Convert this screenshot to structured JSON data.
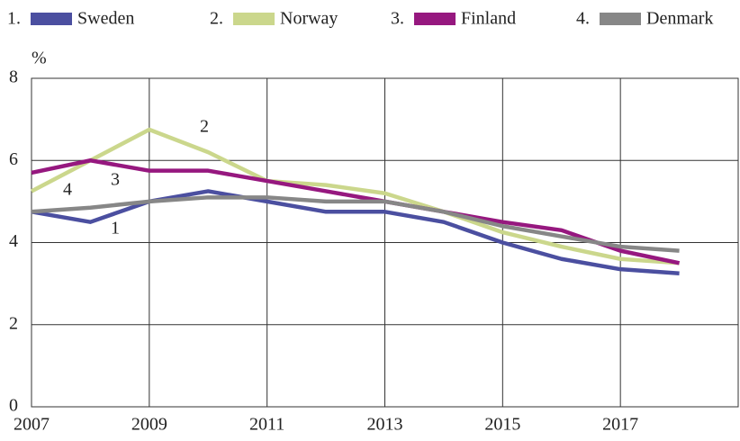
{
  "chart_data": {
    "type": "line",
    "y_label": "%",
    "x": [
      2007,
      2008,
      2009,
      2010,
      2011,
      2012,
      2013,
      2014,
      2015,
      2016,
      2017,
      2018
    ],
    "series": [
      {
        "name": "Sweden",
        "legend_number": "1.",
        "line_label": "1",
        "color": "#4b4fa0",
        "values": [
          4.75,
          4.5,
          5.0,
          5.25,
          5.0,
          4.75,
          4.75,
          4.5,
          4.0,
          3.6,
          3.35,
          3.25
        ]
      },
      {
        "name": "Norway",
        "legend_number": "2.",
        "line_label": "2",
        "color": "#cbd78c",
        "values": [
          5.25,
          6.0,
          6.75,
          6.2,
          5.5,
          5.4,
          5.2,
          4.75,
          4.25,
          3.9,
          3.6,
          3.5
        ]
      },
      {
        "name": "Finland",
        "legend_number": "3.",
        "line_label": "3",
        "color": "#96187f",
        "values": [
          5.7,
          6.0,
          5.75,
          5.75,
          5.5,
          5.25,
          5.0,
          4.75,
          4.5,
          4.3,
          3.8,
          3.5
        ]
      },
      {
        "name": "Denmark",
        "legend_number": "4.",
        "line_label": "4",
        "color": "#878787",
        "values": [
          4.75,
          4.85,
          5.0,
          5.1,
          5.1,
          5.0,
          5.0,
          4.75,
          4.4,
          4.15,
          3.9,
          3.8
        ]
      }
    ],
    "xlim": [
      2007,
      2019
    ],
    "ylim": [
      0,
      8
    ],
    "xticks": [
      2007,
      2009,
      2011,
      2013,
      2015,
      2017
    ],
    "yticks": [
      0,
      2,
      4,
      6,
      8
    ],
    "grid": true
  }
}
